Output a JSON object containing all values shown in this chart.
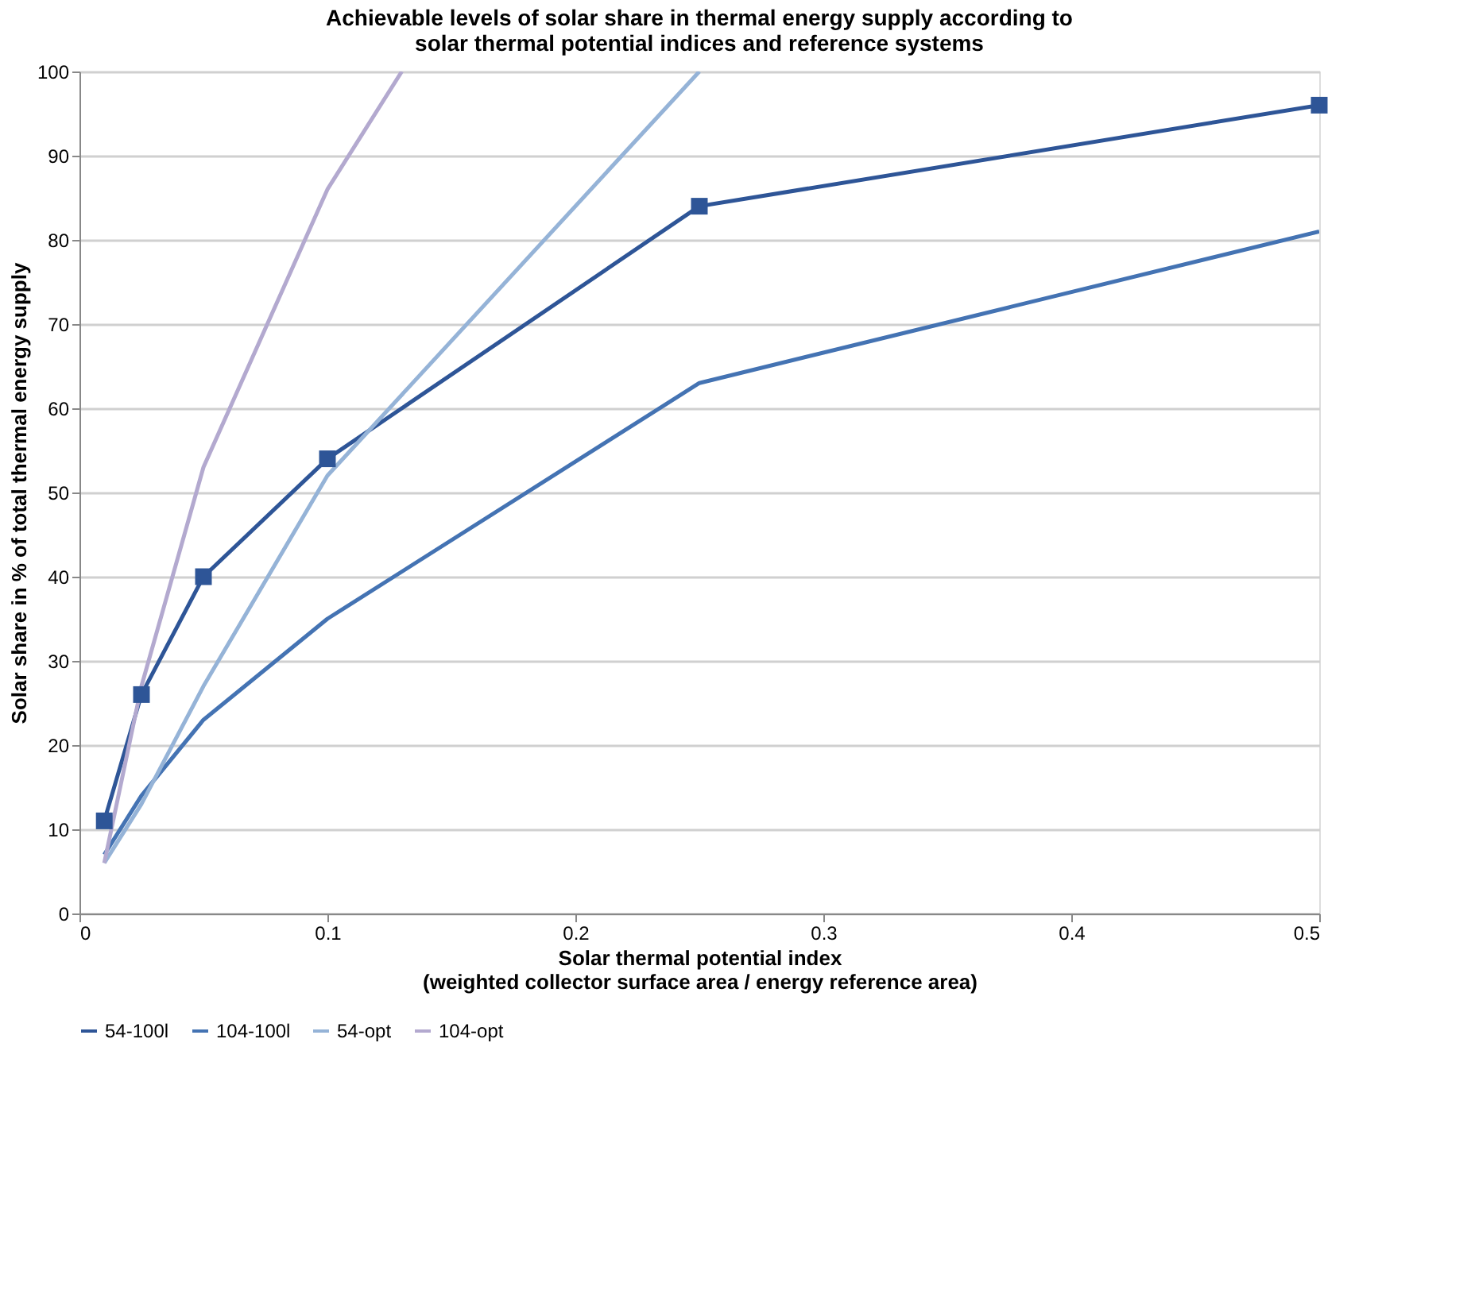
{
  "chart_data": {
    "type": "line",
    "title": [
      "Achievable levels of solar share in thermal energy supply according to",
      "solar thermal potential indices and reference systems"
    ],
    "xlabel": [
      "Solar thermal potential index",
      "(weighted collector surface area / energy reference area)"
    ],
    "ylabel": "Solar share in % of total thermal energy supply",
    "x": [
      0.01,
      0.025,
      0.05,
      0.1,
      0.25,
      0.5
    ],
    "series": [
      {
        "name": "54-100l",
        "color": "#2e5597",
        "marker": "square",
        "values": [
          11,
          26,
          40,
          54,
          84,
          96
        ]
      },
      {
        "name": "104-100l",
        "color": "#4473b3",
        "marker": "none",
        "values": [
          7,
          14,
          23,
          35,
          63,
          81
        ]
      },
      {
        "name": "54-opt",
        "color": "#95b3d7",
        "marker": "none",
        "values": [
          6,
          13,
          27,
          52,
          100,
          null
        ]
      },
      {
        "name": "104-opt",
        "color": "#b3a9cf",
        "marker": "none",
        "x": [
          0.01,
          0.025,
          0.05,
          0.1,
          0.13
        ],
        "values": [
          6,
          27,
          53,
          86,
          100
        ]
      }
    ],
    "xlim": [
      0,
      0.5
    ],
    "xticks": [
      0,
      0.1,
      0.2,
      0.3,
      0.4,
      0.5
    ],
    "ylim": [
      0,
      100
    ],
    "yticks": [
      0,
      10,
      20,
      30,
      40,
      50,
      60,
      70,
      80,
      90,
      100
    ],
    "grid": "y",
    "legend": "bottom",
    "line_style": "solid"
  }
}
